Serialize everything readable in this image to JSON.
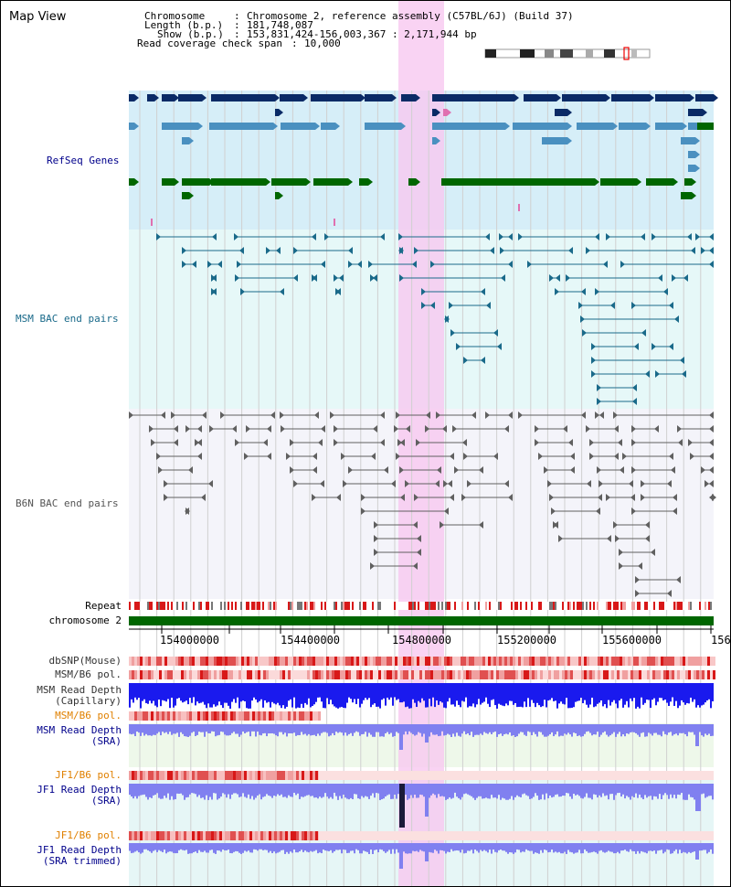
{
  "title": "Map View",
  "info": {
    "chromosome_key": "Chromosome",
    "chromosome_val": "Chromosome 2, reference assembly (C57BL/6J) (Build 37)",
    "length_key": "Length (b.p.)",
    "length_val": "181,748,087",
    "show_key": "Show (b.p.)",
    "show_val": "153,831,424-156,003,367 : 2,171,944 bp",
    "span_key": "Read coverage check span",
    "span_val": "10,000"
  },
  "tracks": {
    "refseq": "RefSeq Genes",
    "msm_bac": "MSM BAC end pairs",
    "b6n_bac": "B6N BAC end pairs",
    "repeat": "Repeat",
    "chromosome": "chromosome 2"
  },
  "axis": {
    "ticks": [
      "154000000",
      "154400000",
      "154800000",
      "155200000",
      "155600000",
      "156"
    ]
  },
  "lower_tracks": {
    "dbsnp": "dbSNP(Mouse)",
    "msm_b6_pol_1": "MSM/B6 pol.",
    "msm_depth_cap_1": "MSM Read Depth",
    "msm_depth_cap_2": "(Capillary)",
    "msm_b6_pol_2": "MSM/B6 pol.",
    "msm_depth_sra_1": "MSM Read Depth",
    "msm_depth_sra_2": "(SRA)",
    "jf1_b6_pol_1": "JF1/B6 pol.",
    "jf1_depth_1": "JF1 Read Depth",
    "jf1_depth_2": "(SRA)",
    "jf1_b6_pol_2": "JF1/B6 pol.",
    "jf1_trim_1": "JF1 Read Depth",
    "jf1_trim_2": "(SRA trimmed)"
  },
  "colors": {
    "refseq_bg": "#d6eef8",
    "msm_bg": "#e6f8f8",
    "b6n_bg": "#f4f4fa",
    "highlight": "#f8c8f0",
    "refseq_dark": "#0a2a66",
    "refseq_mid": "#4a90c0",
    "refseq_green": "#006600",
    "msm_pair": "#1a6a8a",
    "b6n_pair": "#606060",
    "chrom_bar": "#006600",
    "depth_blue": "#1a1aee",
    "depth_light": "#8080f0",
    "label_blue": "#00008b",
    "label_orange": "#e08000"
  }
}
